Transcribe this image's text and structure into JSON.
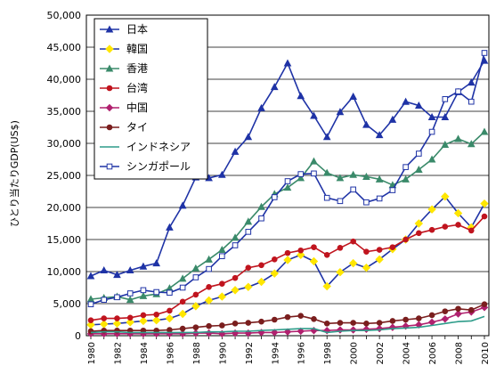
{
  "chart_data": {
    "type": "line",
    "title": "",
    "xlabel": "",
    "ylabel": "ひとり当たりGDP(US$)",
    "ylim": [
      0,
      50000
    ],
    "y_ticks": [
      0,
      5000,
      10000,
      15000,
      20000,
      25000,
      30000,
      35000,
      40000,
      45000,
      50000
    ],
    "y_tick_labels": [
      "0",
      "5,000",
      "10,000",
      "15,000",
      "20,000",
      "25,000",
      "30,000",
      "35,000",
      "40,000",
      "45,000",
      "50,000"
    ],
    "x_tick_labels": [
      "1980",
      "1982",
      "1984",
      "1986",
      "1988",
      "1990",
      "1992",
      "1994",
      "1996",
      "1998",
      "2000",
      "2002",
      "2004",
      "2006",
      "2008",
      "2010"
    ],
    "x": [
      1980,
      1981,
      1982,
      1983,
      1984,
      1985,
      1986,
      1987,
      1988,
      1989,
      1990,
      1991,
      1992,
      1993,
      1994,
      1995,
      1996,
      1997,
      1998,
      1999,
      2000,
      2001,
      2002,
      2003,
      2004,
      2005,
      2006,
      2007,
      2008,
      2009,
      2010
    ],
    "grid": "horizontal",
    "legend_placement": "top-left",
    "series": [
      {
        "name": "日本",
        "color": "#1f33a6",
        "marker": "triangle",
        "values": [
          9300,
          10200,
          9500,
          10200,
          10800,
          11300,
          16900,
          20300,
          24700,
          24600,
          25100,
          28700,
          31000,
          35500,
          38800,
          42500,
          37400,
          34300,
          31000,
          34900,
          37300,
          32900,
          31300,
          33700,
          36500,
          35900,
          34100,
          34100,
          38000,
          39500,
          42900
        ]
      },
      {
        "name": "韓国",
        "color": "#1f33a6",
        "marker": "diamond-yellow",
        "values": [
          1700,
          1800,
          1900,
          2100,
          2300,
          2400,
          2700,
          3400,
          4600,
          5500,
          6100,
          7100,
          7600,
          8400,
          9700,
          11800,
          12600,
          11600,
          7700,
          9900,
          11300,
          10600,
          11900,
          13500,
          15000,
          17500,
          19700,
          21700,
          19100,
          16900,
          20600
        ]
      },
      {
        "name": "香港",
        "color": "#3a8a6a",
        "marker": "triangle",
        "values": [
          5700,
          5900,
          6100,
          5600,
          6200,
          6500,
          7400,
          8900,
          10500,
          11900,
          13400,
          15300,
          17800,
          20100,
          22100,
          23100,
          24600,
          27200,
          25400,
          24600,
          25100,
          24800,
          24400,
          23500,
          24400,
          25900,
          27500,
          29800,
          30700,
          29900,
          31800
        ]
      },
      {
        "name": "台湾",
        "color": "#c0141e",
        "marker": "circle",
        "values": [
          2400,
          2700,
          2700,
          2800,
          3200,
          3300,
          3900,
          5300,
          6400,
          7600,
          8100,
          9000,
          10600,
          11000,
          11900,
          12900,
          13300,
          13800,
          12600,
          13700,
          14700,
          13100,
          13400,
          13800,
          15000,
          16000,
          16500,
          17000,
          17300,
          16400,
          18600
        ]
      },
      {
        "name": "中国",
        "color": "#b0206e",
        "marker": "diamond",
        "values": [
          300,
          300,
          300,
          300,
          300,
          300,
          300,
          300,
          400,
          400,
          300,
          400,
          400,
          500,
          500,
          600,
          700,
          800,
          800,
          900,
          900,
          1000,
          1100,
          1300,
          1500,
          1700,
          2100,
          2600,
          3400,
          3700,
          4400
        ]
      },
      {
        "name": "タイ",
        "color": "#7a1e1e",
        "marker": "circle",
        "values": [
          700,
          800,
          800,
          800,
          800,
          800,
          900,
          1100,
          1300,
          1500,
          1600,
          1900,
          2000,
          2200,
          2500,
          2900,
          3100,
          2600,
          1900,
          2000,
          2000,
          1900,
          2000,
          2300,
          2500,
          2700,
          3200,
          3800,
          4200,
          4000,
          4900
        ]
      },
      {
        "name": "インドネシア",
        "color": "#2e9c8a",
        "marker": "none",
        "values": [
          500,
          600,
          600,
          500,
          500,
          500,
          500,
          500,
          500,
          600,
          600,
          700,
          700,
          800,
          900,
          1000,
          1100,
          1100,
          500,
          700,
          800,
          800,
          900,
          1100,
          1200,
          1300,
          1600,
          1900,
          2200,
          2300,
          3000
        ]
      },
      {
        "name": "シンガポール",
        "color": "#1f33a6",
        "marker": "square-open",
        "values": [
          4900,
          5600,
          6000,
          6600,
          7100,
          6800,
          6700,
          7500,
          9100,
          10400,
          12400,
          14100,
          16200,
          18300,
          21600,
          24100,
          25200,
          25300,
          21500,
          21000,
          22800,
          20800,
          21400,
          22700,
          26300,
          28400,
          31800,
          36900,
          38100,
          36500,
          44100
        ]
      }
    ]
  }
}
